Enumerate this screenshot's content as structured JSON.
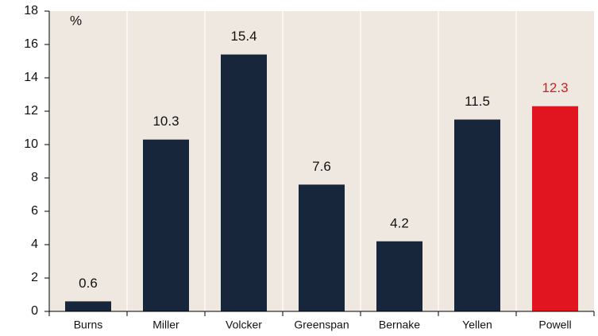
{
  "chart_data": {
    "type": "bar",
    "y_label": "%",
    "categories": [
      "Burns",
      "Miller",
      "Volcker",
      "Greenspan",
      "Bernake",
      "Yellen",
      "Powell"
    ],
    "values": [
      0.6,
      10.3,
      15.4,
      7.6,
      4.2,
      11.5,
      12.3
    ],
    "colors": [
      "#17263a",
      "#17263a",
      "#17263a",
      "#17263a",
      "#17263a",
      "#17263a",
      "#e0151f"
    ],
    "label_colors": [
      "#111111",
      "#111111",
      "#111111",
      "#111111",
      "#111111",
      "#111111",
      "#e0151f"
    ],
    "ylim": [
      0,
      18
    ],
    "yticks": [
      0,
      2,
      4,
      6,
      8,
      10,
      12,
      14,
      16,
      18
    ],
    "grid": true
  }
}
